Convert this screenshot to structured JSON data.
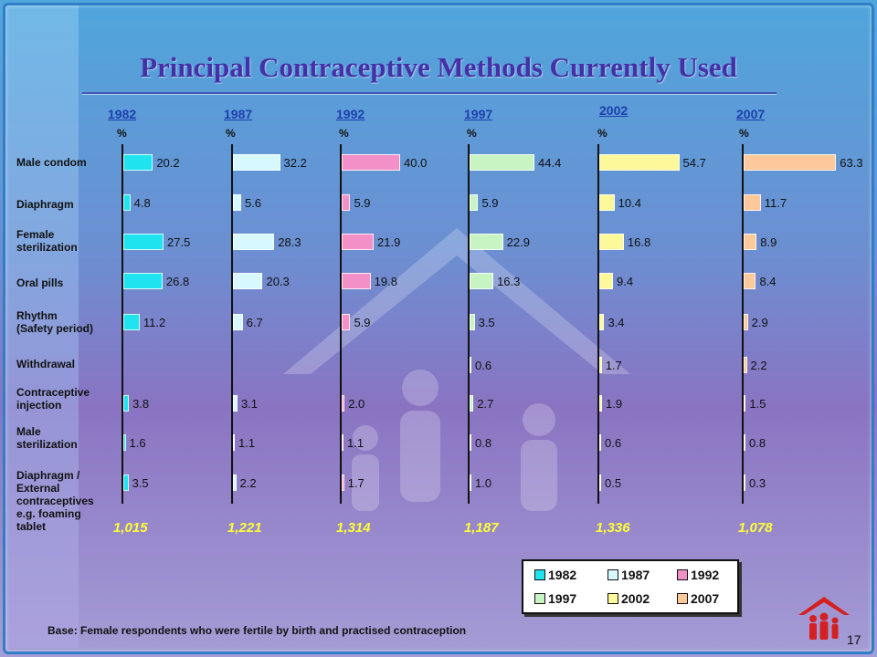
{
  "title": "Principal Contraceptive Methods Currently Used",
  "pct_symbol": "%",
  "chart_data": {
    "type": "bar",
    "orientation": "horizontal",
    "unit": "%",
    "categories": [
      "Male condom",
      "Diaphragm",
      "Female\nsterilization",
      "Oral pills",
      "Rhythm\n(Safety period)",
      "Withdrawal",
      "Contraceptive\ninjection",
      "Male\nsterilization",
      "Diaphragm /\nExternal\ncontraceptives\ne.g. foaming\ntablet"
    ],
    "series": [
      {
        "name": "1982",
        "color": "#1fe4f0",
        "values": [
          20.2,
          4.8,
          27.5,
          26.8,
          11.2,
          null,
          3.8,
          1.6,
          3.5
        ],
        "labels": [
          "20.2",
          "4.8",
          "27.5",
          "26.8",
          "11.2",
          "",
          "3.8",
          "1.6",
          "3.5"
        ],
        "base": "1,015"
      },
      {
        "name": "1987",
        "color": "#d8f8ff",
        "values": [
          32.2,
          5.6,
          28.3,
          20.3,
          6.7,
          null,
          3.1,
          1.1,
          2.2
        ],
        "labels": [
          "32.2",
          "5.6",
          "28.3",
          "20.3",
          "6.7",
          "",
          "3.1",
          "1.1",
          "2.2"
        ],
        "base": "1,221"
      },
      {
        "name": "1992",
        "color": "#f490c8",
        "values": [
          40.0,
          5.9,
          21.9,
          19.8,
          5.9,
          null,
          2.0,
          1.1,
          1.7
        ],
        "labels": [
          "40.0",
          "5.9",
          "21.9",
          "19.8",
          "5.9",
          "",
          "2.0",
          "1.1",
          "1.7"
        ],
        "base": "1,314"
      },
      {
        "name": "1997",
        "color": "#c8f4c4",
        "values": [
          44.4,
          5.9,
          22.9,
          16.3,
          3.5,
          0.6,
          2.7,
          0.8,
          1.0
        ],
        "labels": [
          "44.4",
          "5.9",
          "22.9",
          "16.3",
          "3.5",
          "0.6",
          "2.7",
          "0.8",
          "1.0"
        ],
        "base": "1,187"
      },
      {
        "name": "2002",
        "color": "#fdf89a",
        "values": [
          54.7,
          10.4,
          16.8,
          9.4,
          3.4,
          1.7,
          1.9,
          0.6,
          0.5
        ],
        "labels": [
          "54.7",
          "10.4",
          "16.8",
          "9.4",
          "3.4",
          "1.7",
          "1.9",
          "0.6",
          "0.5"
        ],
        "base": "1,336"
      },
      {
        "name": "2007",
        "color": "#fdc89a",
        "values": [
          63.3,
          11.7,
          8.9,
          8.4,
          2.9,
          2.2,
          1.5,
          0.8,
          0.3
        ],
        "labels": [
          "63.3",
          "11.7",
          "8.9",
          "8.4",
          "2.9",
          "2.2",
          "1.5",
          "0.8",
          "0.3"
        ],
        "base": "1,078"
      }
    ],
    "legend_position": "bottom-right",
    "legend": [
      "1982",
      "1987",
      "1992",
      "1997",
      "2002",
      "2007"
    ]
  },
  "footnote": "Base: Female respondents who were fertile by birth and practised contraception",
  "page_number": "17",
  "colors": {
    "title": "#4630a8",
    "year_label": "#1e3fae",
    "base_count": "#ffff33"
  },
  "icons": {
    "watermark": "family-house-icon",
    "logo": "family-house-logo"
  }
}
